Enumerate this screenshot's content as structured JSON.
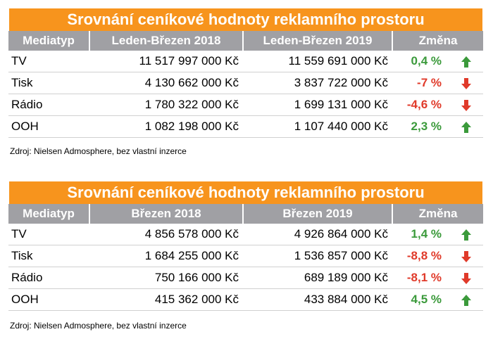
{
  "tables": [
    {
      "title": "Srovnání ceníkové hodnoty reklamního prostoru",
      "headers": [
        "Mediatyp",
        "Leden-Březen 2018",
        "Leden-Březen 2019",
        "Změna"
      ],
      "rows": [
        {
          "media": "TV",
          "v1": "11 517 997 000 Kč",
          "v2": "11 559 691 000 Kč",
          "change": "0,4 %",
          "trend": "up"
        },
        {
          "media": "Tisk",
          "v1": "4 130 662 000 Kč",
          "v2": "3 837 722 000 Kč",
          "change": "-7 %",
          "trend": "down"
        },
        {
          "media": "Rádio",
          "v1": "1 780 322 000 Kč",
          "v2": "1 699 131 000 Kč",
          "change": "-4,6 %",
          "trend": "down"
        },
        {
          "media": "OOH",
          "v1": "1 082 198 000 Kč",
          "v2": "1 107 440 000 Kč",
          "change": "2,3 %",
          "trend": "up"
        }
      ],
      "source": "Zdroj: Nielsen Admosphere, bez vlastní inzerce"
    },
    {
      "title": "Srovnání ceníkové hodnoty reklamního prostoru",
      "headers": [
        "Mediatyp",
        "Březen 2018",
        "Březen 2019",
        "Změna"
      ],
      "rows": [
        {
          "media": "TV",
          "v1": "4 856 578 000 Kč",
          "v2": "4 926 864 000 Kč",
          "change": "1,4 %",
          "trend": "up"
        },
        {
          "media": "Tisk",
          "v1": "1 684 255 000 Kč",
          "v2": "1 536 857 000 Kč",
          "change": "-8,8 %",
          "trend": "down"
        },
        {
          "media": "Rádio",
          "v1": "750 166 000 Kč",
          "v2": "689 189 000 Kč",
          "change": "-8,1 %",
          "trend": "down"
        },
        {
          "media": "OOH",
          "v1": "415 362 000 Kč",
          "v2": "433 884 000 Kč",
          "change": "4,5 %",
          "trend": "up"
        }
      ],
      "source": "Zdroj: Nielsen Admosphere, bez vlastní inzerce"
    }
  ],
  "colors": {
    "title_bg": "#f7941d",
    "header_bg": "#a0a0a4",
    "positive": "#3b9a3b",
    "negative": "#e03a2a"
  }
}
